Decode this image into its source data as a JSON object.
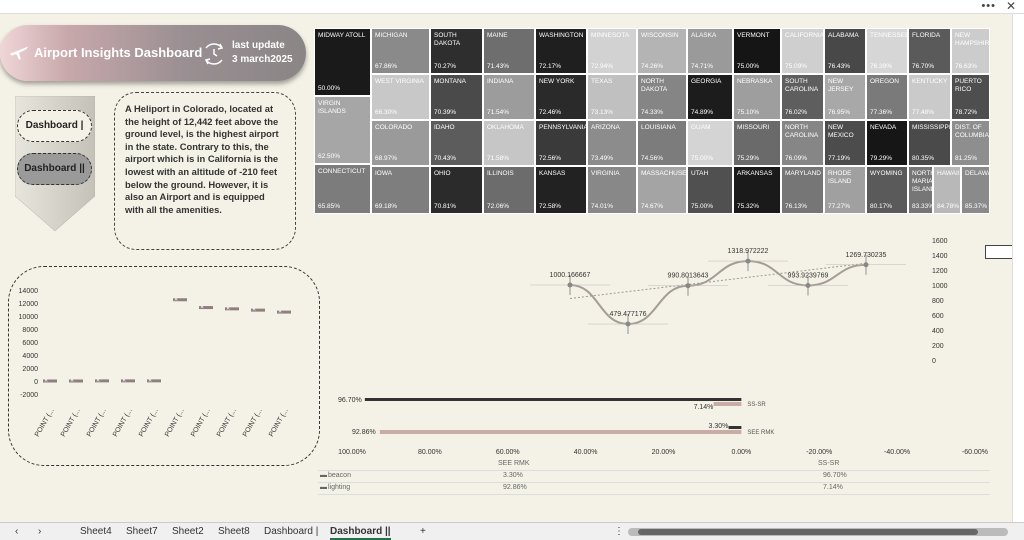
{
  "window": {
    "menu_dots": "•••",
    "close": "✕"
  },
  "header": {
    "title": "Airport Insights Dashboard",
    "last_update_line1": "last update",
    "last_update_line2": "3 march2025"
  },
  "nav": {
    "btn1": "Dashboard |",
    "btn2": "Dashboard ||"
  },
  "note": {
    "text": "A Heliport in Colorado, located at the height of 12,442 feet above the ground level, is the highest airport in the state. Contrary to this, the airport which is in California is the lowest with an altitude of -210 feet below the ground. However, it is also an Airport and is equipped with all the amenities."
  },
  "treemap": {
    "cells": [
      {
        "n": "MIDWAY ATOLL",
        "v": "50.00%",
        "bg": "#1a1a1a",
        "fg": "#fff"
      },
      {
        "n": "MICHIGAN",
        "v": "67.86%",
        "bg": "#8a8a8a",
        "fg": "#fff"
      },
      {
        "n": "SOUTH DAKOTA",
        "v": "70.27%",
        "bg": "#2e2e2e",
        "fg": "#fff"
      },
      {
        "n": "MAINE",
        "v": "71.43%",
        "bg": "#6e6e6e",
        "fg": "#fff"
      },
      {
        "n": "WASHINGTON",
        "v": "72.17%",
        "bg": "#1f1f1f",
        "fg": "#fff"
      },
      {
        "n": "MINNESOTA",
        "v": "72.94%",
        "bg": "#d2d2d2",
        "fg": "#fff"
      },
      {
        "n": "WISCONSIN",
        "v": "74.26%",
        "bg": "#b4b4b4",
        "fg": "#fff"
      },
      {
        "n": "ALASKA",
        "v": "74.71%",
        "bg": "#9a9a9a",
        "fg": "#fff"
      },
      {
        "n": "VERMONT",
        "v": "75.00%",
        "bg": "#151515",
        "fg": "#fff"
      },
      {
        "n": "CALIFORNIA",
        "v": "75.09%",
        "bg": "#cfcfcf",
        "fg": "#fff"
      },
      {
        "n": "ALABAMA",
        "v": "76.43%",
        "bg": "#484848",
        "fg": "#fff"
      },
      {
        "n": "TENNESSEE",
        "v": "76.39%",
        "bg": "#d6d6d6",
        "fg": "#fff"
      },
      {
        "n": "FLORIDA",
        "v": "76.70%",
        "bg": "#5a5a5a",
        "fg": "#fff"
      },
      {
        "n": "NEW HAMPSHIRE",
        "v": "76.63%",
        "bg": "#cccccc",
        "fg": "#fff"
      },
      {
        "n": "VIRGIN ISLANDS",
        "v": "62.50%",
        "bg": "#a6a6a6",
        "fg": "#fff"
      },
      {
        "n": "WEST VIRGINIA",
        "v": "66.30%",
        "bg": "#c8c8c8",
        "fg": "#fff"
      },
      {
        "n": "MONTANA",
        "v": "70.39%",
        "bg": "#4a4a4a",
        "fg": "#fff"
      },
      {
        "n": "INDIANA",
        "v": "71.54%",
        "bg": "#9c9c9c",
        "fg": "#fff"
      },
      {
        "n": "NEW YORK",
        "v": "72.46%",
        "bg": "#2a2a2a",
        "fg": "#fff"
      },
      {
        "n": "TEXAS",
        "v": "73.13%",
        "bg": "#c0c0c0",
        "fg": "#fff"
      },
      {
        "n": "NORTH DAKOTA",
        "v": "74.33%",
        "bg": "#858585",
        "fg": "#fff"
      },
      {
        "n": "GEORGIA",
        "v": "74.89%",
        "bg": "#1c1c1c",
        "fg": "#fff"
      },
      {
        "n": "NEBRASKA",
        "v": "75.10%",
        "bg": "#9e9e9e",
        "fg": "#fff"
      },
      {
        "n": "SOUTH CAROLINA",
        "v": "76.02%",
        "bg": "#5e5e5e",
        "fg": "#fff"
      },
      {
        "n": "NEW JERSEY",
        "v": "76.95%",
        "bg": "#a8a8a8",
        "fg": "#fff"
      },
      {
        "n": "OREGON",
        "v": "77.36%",
        "bg": "#7a7a7a",
        "fg": "#fff"
      },
      {
        "n": "KENTUCKY",
        "v": "77.48%",
        "bg": "#cacaca",
        "fg": "#fff"
      },
      {
        "n": "PUERTO RICO",
        "v": "78.72%",
        "bg": "#4e4e4e",
        "fg": "#fff"
      },
      {
        "n": "COLORADO",
        "v": "68.97%",
        "bg": "#9a9a9a",
        "fg": "#fff"
      },
      {
        "n": "IDAHO",
        "v": "70.43%",
        "bg": "#5c5c5c",
        "fg": "#fff"
      },
      {
        "n": "OKLAHOMA",
        "v": "71.58%",
        "bg": "#c6c6c6",
        "fg": "#fff"
      },
      {
        "n": "PENNSYLVANIA",
        "v": "72.56%",
        "bg": "#3a3a3a",
        "fg": "#fff"
      },
      {
        "n": "ARIZONA",
        "v": "73.49%",
        "bg": "#8c8c8c",
        "fg": "#fff"
      },
      {
        "n": "LOUISIANA",
        "v": "74.56%",
        "bg": "#7c7c7c",
        "fg": "#fff"
      },
      {
        "n": "GUAM",
        "v": "75.00%",
        "bg": "#d4d4d4",
        "fg": "#fff"
      },
      {
        "n": "MISSOURI",
        "v": "75.29%",
        "bg": "#6a6a6a",
        "fg": "#fff"
      },
      {
        "n": "NORTH CAROLINA",
        "v": "76.09%",
        "bg": "#868686",
        "fg": "#fff"
      },
      {
        "n": "NEW MEXICO",
        "v": "77.19%",
        "bg": "#4c4c4c",
        "fg": "#fff"
      },
      {
        "n": "NEVADA",
        "v": "79.29%",
        "bg": "#161616",
        "fg": "#fff"
      },
      {
        "n": "MISSISSIPPI",
        "v": "80.35%",
        "bg": "#4a4a4a",
        "fg": "#fff"
      },
      {
        "n": "DIST. OF COLUMBIA",
        "v": "81.25%",
        "bg": "#8e8e8e",
        "fg": "#fff"
      },
      {
        "n": "CONNECTICUT",
        "v": "65.85%",
        "bg": "#7c7c7c",
        "fg": "#fff"
      },
      {
        "n": "IOWA",
        "v": "69.18%",
        "bg": "#7e7e7e",
        "fg": "#fff"
      },
      {
        "n": "OHIO",
        "v": "70.81%",
        "bg": "#2b2b2b",
        "fg": "#fff"
      },
      {
        "n": "ILLINOIS",
        "v": "72.06%",
        "bg": "#6c6c6c",
        "fg": "#fff"
      },
      {
        "n": "KANSAS",
        "v": "72.58%",
        "bg": "#222222",
        "fg": "#fff"
      },
      {
        "n": "VIRGINIA",
        "v": "74.01%",
        "bg": "#888888",
        "fg": "#fff"
      },
      {
        "n": "MASSACHUSETTS",
        "v": "74.67%",
        "bg": "#a4a4a4",
        "fg": "#fff"
      },
      {
        "n": "UTAH",
        "v": "75.00%",
        "bg": "#505050",
        "fg": "#fff"
      },
      {
        "n": "ARKANSAS",
        "v": "75.32%",
        "bg": "#1a1a1a",
        "fg": "#fff"
      },
      {
        "n": "MARYLAND",
        "v": "76.13%",
        "bg": "#767676",
        "fg": "#fff"
      },
      {
        "n": "RHODE ISLAND",
        "v": "77.27%",
        "bg": "#a0a0a0",
        "fg": "#fff"
      },
      {
        "n": "WYOMING",
        "v": "80.17%",
        "bg": "#5a5a5a",
        "fg": "#fff"
      },
      {
        "n": "NORTHERN MARIANA ISLANDS",
        "v": "83.33%",
        "bg": "#767676",
        "fg": "#fff"
      },
      {
        "n": "HAWAII",
        "v": "84.78%",
        "bg": "#b8b8b8",
        "fg": "#fff"
      },
      {
        "n": "DELAWARE",
        "v": "85.37%",
        "bg": "#8a8a8a",
        "fg": "#fff"
      }
    ]
  },
  "chart_data": [
    {
      "type": "scatter",
      "title": "",
      "categories": [
        "POINT (...",
        "POINT (...",
        "POINT (...",
        "POINT (...",
        "POINT (...",
        "POINT (...",
        "POINT (...",
        "POINT (...",
        "POINT (...",
        "POINT (..."
      ],
      "values": [
        0,
        0,
        20,
        20,
        20,
        12500,
        11300,
        11100,
        10900,
        10600
      ],
      "ylim": [
        -2000,
        14000
      ],
      "yticks": [
        "14000",
        "12000",
        "10000",
        "8000",
        "6000",
        "4000",
        "2000",
        "0",
        "-2000"
      ]
    },
    {
      "type": "line",
      "title": "",
      "labels": [
        "1000.166667",
        "479.477176",
        "990.8013643",
        "1318.972222",
        "993.9239769",
        "1269.730235"
      ],
      "values": [
        1000.166667,
        479.477176,
        990.8013643,
        1318.972222,
        993.9239769,
        1269.730235
      ],
      "trendline": true,
      "ylim": [
        0,
        1600
      ],
      "yticks": [
        "1600",
        "1400",
        "1200",
        "1000",
        "800",
        "600",
        "400",
        "200",
        "0"
      ]
    },
    {
      "type": "bar",
      "orientation": "horizontal",
      "categories": [
        "SS-SR",
        "SEE RMK"
      ],
      "series": [
        {
          "name": "beacon",
          "values": [
            96.7,
            3.3
          ]
        },
        {
          "name": "lighting",
          "values": [
            7.14,
            92.86
          ]
        }
      ],
      "data_labels": [
        "96.70%",
        "7.14%",
        "3.30%",
        "92.86%"
      ],
      "xticks": [
        "100.00%",
        "80.00%",
        "60.00%",
        "40.00%",
        "20.00%",
        "0.00%",
        "-20.00%",
        "-40.00%",
        "-60.00%"
      ],
      "table": {
        "headers": [
          "SEE RMK",
          "SS-SR"
        ],
        "rows": [
          {
            "label": "beacon",
            "values": [
              "3.30%",
              "96.70%"
            ]
          },
          {
            "label": "lighting",
            "values": [
              "92.86%",
              "7.14%"
            ]
          }
        ]
      }
    }
  ],
  "tabs": {
    "items": [
      "Sheet4",
      "Sheet7",
      "Sheet2",
      "Sheet8",
      "Dashboard |",
      "Dashboard ||"
    ],
    "add": "+",
    "prev": "‹",
    "next": "›",
    "more": "⋮"
  },
  "colors": {
    "background": "#f4f2e6",
    "accent": "#b39495",
    "tab_active": "#217346"
  }
}
